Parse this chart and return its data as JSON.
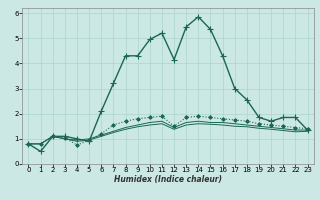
{
  "xlabel": "Humidex (Indice chaleur)",
  "background_color": "#cce8e4",
  "grid_color": "#aad4cc",
  "line_color": "#1a6655",
  "x": [
    0,
    1,
    2,
    3,
    4,
    5,
    6,
    7,
    8,
    9,
    10,
    11,
    12,
    13,
    14,
    15,
    16,
    17,
    18,
    19,
    20,
    21,
    22,
    23
  ],
  "series": [
    [
      0.8,
      0.5,
      1.1,
      1.1,
      1.0,
      0.9,
      2.1,
      3.2,
      4.3,
      4.3,
      4.95,
      5.2,
      4.15,
      5.45,
      5.85,
      5.35,
      4.3,
      3.0,
      2.55,
      1.85,
      1.7,
      1.85,
      1.85,
      1.35
    ],
    [
      0.8,
      0.8,
      1.1,
      1.05,
      0.75,
      0.95,
      1.2,
      1.55,
      1.7,
      1.8,
      1.85,
      1.9,
      1.5,
      1.85,
      1.9,
      1.85,
      1.8,
      1.75,
      1.7,
      1.6,
      1.55,
      1.5,
      1.45,
      1.4
    ],
    [
      0.8,
      0.8,
      1.1,
      1.0,
      0.95,
      1.0,
      1.15,
      1.3,
      1.45,
      1.55,
      1.65,
      1.7,
      1.45,
      1.65,
      1.7,
      1.65,
      1.65,
      1.6,
      1.55,
      1.5,
      1.45,
      1.4,
      1.35,
      1.35
    ],
    [
      0.8,
      0.8,
      1.1,
      1.0,
      0.9,
      0.95,
      1.1,
      1.25,
      1.38,
      1.48,
      1.55,
      1.6,
      1.38,
      1.55,
      1.6,
      1.58,
      1.55,
      1.5,
      1.48,
      1.42,
      1.38,
      1.33,
      1.28,
      1.3
    ]
  ],
  "series_styles": [
    {
      "linestyle": "-",
      "marker": "+",
      "linewidth": 1.0,
      "markersize": 4
    },
    {
      "linestyle": ":",
      "marker": "D",
      "linewidth": 0.8,
      "markersize": 1.8
    },
    {
      "linestyle": "-",
      "marker": null,
      "linewidth": 0.7,
      "markersize": 0
    },
    {
      "linestyle": "-",
      "marker": null,
      "linewidth": 0.7,
      "markersize": 0
    }
  ],
  "xlim": [
    -0.5,
    23.5
  ],
  "ylim": [
    0,
    6.2
  ],
  "yticks": [
    0,
    1,
    2,
    3,
    4,
    5,
    6
  ],
  "xticks": [
    0,
    1,
    2,
    3,
    4,
    5,
    6,
    7,
    8,
    9,
    10,
    11,
    12,
    13,
    14,
    15,
    16,
    17,
    18,
    19,
    20,
    21,
    22,
    23
  ],
  "tick_fontsize": 5.0,
  "xlabel_fontsize": 5.5
}
